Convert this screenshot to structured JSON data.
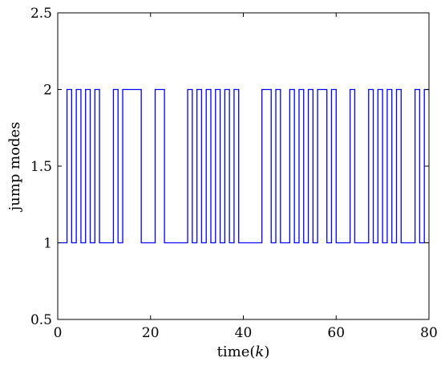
{
  "chart_data": {
    "type": "line",
    "title": "",
    "xlabel": "time(k)",
    "ylabel": "jump modes",
    "xlim": [
      0,
      80
    ],
    "ylim": [
      0.5,
      2.5
    ],
    "x_ticks": [
      0,
      20,
      40,
      60,
      80
    ],
    "x_tick_labels": [
      "0",
      "20",
      "40",
      "60",
      "80"
    ],
    "y_ticks": [
      0.5,
      1,
      1.5,
      2,
      2.5
    ],
    "y_tick_labels": [
      "0.5",
      "1",
      "1.5",
      "2",
      "2.5"
    ],
    "grid": false,
    "line_style": "step",
    "series": [
      {
        "color": "#0000ff",
        "x": [
          0,
          1,
          2,
          3,
          4,
          5,
          6,
          7,
          8,
          9,
          10,
          11,
          12,
          13,
          14,
          15,
          16,
          17,
          18,
          19,
          20,
          21,
          22,
          23,
          24,
          25,
          26,
          27,
          28,
          29,
          30,
          31,
          32,
          33,
          34,
          35,
          36,
          37,
          38,
          39,
          40,
          41,
          42,
          43,
          44,
          45,
          46,
          47,
          48,
          49,
          50,
          51,
          52,
          53,
          54,
          55,
          56,
          57,
          58,
          59,
          60,
          61,
          62,
          63,
          64,
          65,
          66,
          67,
          68,
          69,
          70,
          71,
          72,
          73,
          74,
          75,
          76,
          77,
          78,
          79,
          80
        ],
        "y": [
          1,
          1,
          2,
          1,
          2,
          1,
          2,
          1,
          2,
          1,
          1,
          1,
          2,
          1,
          2,
          2,
          2,
          2,
          1,
          1,
          1,
          2,
          2,
          1,
          1,
          1,
          1,
          1,
          2,
          1,
          2,
          1,
          2,
          1,
          2,
          1,
          2,
          1,
          2,
          1,
          1,
          1,
          1,
          1,
          2,
          2,
          1,
          2,
          1,
          1,
          2,
          1,
          2,
          1,
          2,
          1,
          2,
          2,
          1,
          2,
          1,
          1,
          1,
          2,
          1,
          1,
          1,
          2,
          1,
          2,
          1,
          2,
          1,
          2,
          1,
          1,
          1,
          2,
          1,
          2,
          2
        ]
      }
    ]
  }
}
